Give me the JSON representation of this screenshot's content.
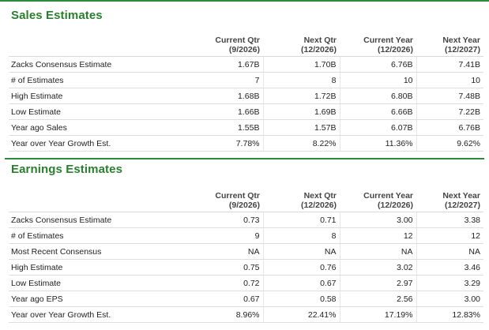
{
  "sales_estimates": {
    "title": "Sales Estimates",
    "columns": [
      {
        "line1": "Current Qtr",
        "line2": "(9/2026)"
      },
      {
        "line1": "Next Qtr",
        "line2": "(12/2026)"
      },
      {
        "line1": "Current Year",
        "line2": "(12/2026)"
      },
      {
        "line1": "Next Year",
        "line2": "(12/2027)"
      }
    ],
    "rows": [
      {
        "label": "Zacks Consensus Estimate",
        "values": [
          "1.67B",
          "1.70B",
          "6.76B",
          "7.41B"
        ]
      },
      {
        "label": "# of Estimates",
        "values": [
          "7",
          "8",
          "10",
          "10"
        ]
      },
      {
        "label": "High Estimate",
        "values": [
          "1.68B",
          "1.72B",
          "6.80B",
          "7.48B"
        ]
      },
      {
        "label": "Low Estimate",
        "values": [
          "1.66B",
          "1.69B",
          "6.66B",
          "7.22B"
        ]
      },
      {
        "label": "Year ago Sales",
        "values": [
          "1.55B",
          "1.57B",
          "6.07B",
          "6.76B"
        ]
      },
      {
        "label": "Year over Year Growth Est.",
        "values": [
          "7.78%",
          "8.22%",
          "11.36%",
          "9.62%"
        ]
      }
    ]
  },
  "earnings_estimates": {
    "title": "Earnings Estimates",
    "columns": [
      {
        "line1": "Current Qtr",
        "line2": "(9/2026)"
      },
      {
        "line1": "Next Qtr",
        "line2": "(12/2026)"
      },
      {
        "line1": "Current Year",
        "line2": "(12/2026)"
      },
      {
        "line1": "Next Year",
        "line2": "(12/2027)"
      }
    ],
    "rows": [
      {
        "label": "Zacks Consensus Estimate",
        "values": [
          "0.73",
          "0.71",
          "3.00",
          "3.38"
        ]
      },
      {
        "label": "# of Estimates",
        "values": [
          "9",
          "8",
          "12",
          "12"
        ]
      },
      {
        "label": "Most Recent Consensus",
        "values": [
          "NA",
          "NA",
          "NA",
          "NA"
        ]
      },
      {
        "label": "High Estimate",
        "values": [
          "0.75",
          "0.76",
          "3.02",
          "3.46"
        ]
      },
      {
        "label": "Low Estimate",
        "values": [
          "0.72",
          "0.67",
          "2.97",
          "3.29"
        ]
      },
      {
        "label": "Year ago EPS",
        "values": [
          "0.67",
          "0.58",
          "2.56",
          "3.00"
        ]
      },
      {
        "label": "Year over Year Growth Est.",
        "values": [
          "8.96%",
          "22.41%",
          "17.19%",
          "12.83%"
        ]
      }
    ]
  },
  "colors": {
    "heading_green": "#2a7f2f",
    "rule_green": "#2e8b3a"
  }
}
